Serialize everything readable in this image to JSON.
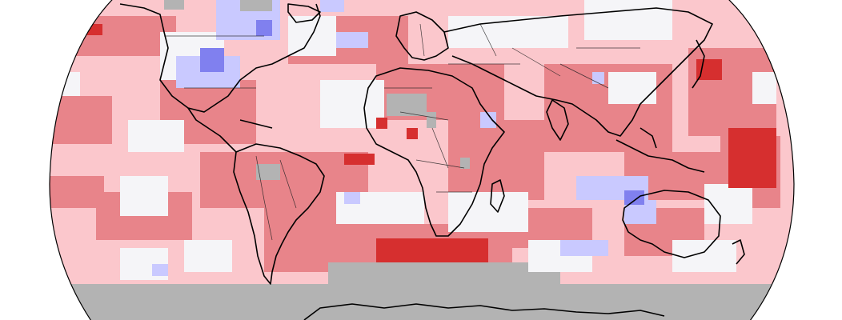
{
  "map": {
    "projection": "robinson",
    "legend": {
      "much_warmer": "#d62f2f",
      "warmer": "#e8848a",
      "slightly_warmer": "#fbc7cc",
      "near_average": "#f5f5f8",
      "cooler": "#c9c9ff",
      "much_cooler": "#8080ef",
      "no_data": "#b3b3b3"
    }
  }
}
